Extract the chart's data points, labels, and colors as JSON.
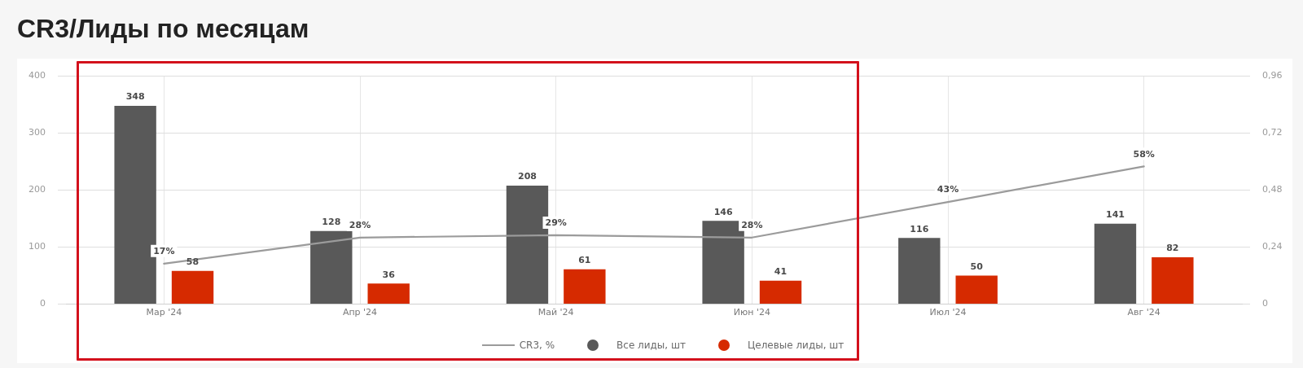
{
  "chart_data": {
    "type": "bar",
    "title": "CR3/Лиды по месяцам",
    "categories": [
      "Мар '24",
      "Апр '24",
      "Май '24",
      "Июн '24",
      "Июл '24",
      "Авг '24"
    ],
    "series": [
      {
        "name": "CR3, %",
        "type": "line",
        "axis": "y2",
        "color": "#9b9b9b",
        "values": [
          0.17,
          0.28,
          0.29,
          0.28,
          0.43,
          0.58
        ],
        "value_labels": [
          "17%",
          "28%",
          "29%",
          "28%",
          "43%",
          "58%"
        ]
      },
      {
        "name": "Все лиды, шт",
        "color": "#595959",
        "values": [
          348,
          128,
          208,
          146,
          116,
          141
        ]
      },
      {
        "name": "Целевые лиды, шт",
        "color": "#d62a00",
        "values": [
          58,
          36,
          61,
          41,
          50,
          82
        ]
      }
    ],
    "ylim": [
      0,
      400
    ],
    "yticks": [
      0,
      100,
      200,
      300,
      400
    ],
    "y2lim": [
      0,
      0.96
    ],
    "y2ticks": [
      0,
      {
        "value": 0.24,
        "label": "0,24"
      },
      {
        "value": 0.48,
        "label": "0,48"
      },
      {
        "value": 0.72,
        "label": "0,72"
      },
      {
        "value": 0.96,
        "label": "0,96"
      }
    ],
    "data_labels": true,
    "grid": true,
    "legend": "bottom",
    "marker": "none",
    "line_style": "solid"
  }
}
